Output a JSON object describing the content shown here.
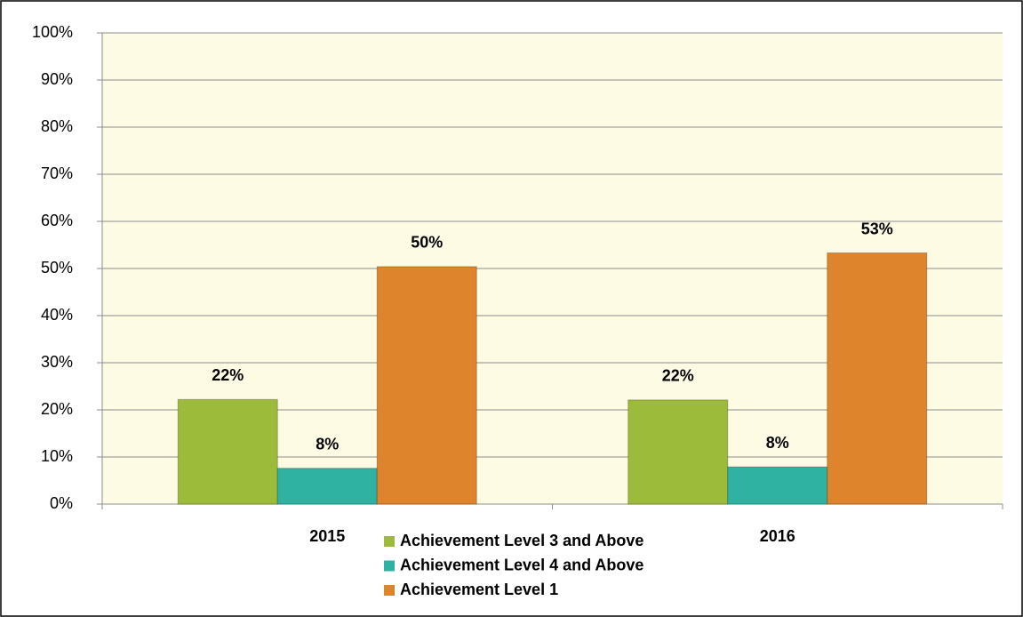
{
  "chart_data": {
    "type": "bar",
    "categories": [
      "2015",
      "2016"
    ],
    "series": [
      {
        "name": "Achievement Level 3 and Above",
        "color": "#9dbb3a",
        "values": [
          22.2,
          22.1
        ],
        "value_labels": [
          "22%",
          "22%"
        ]
      },
      {
        "name": "Achievement Level 4 and Above",
        "color": "#2fb2a2",
        "values": [
          7.6,
          7.9
        ],
        "value_labels": [
          "8%",
          "8%"
        ]
      },
      {
        "name": "Achievement Level 1",
        "color": "#de842c",
        "values": [
          50.4,
          53.3
        ],
        "value_labels": [
          "50%",
          "53%"
        ]
      }
    ],
    "ylim": [
      0,
      100
    ],
    "yticks": [
      {
        "value": 0,
        "label": "0%"
      },
      {
        "value": 10,
        "label": "10%"
      },
      {
        "value": 20,
        "label": "20%"
      },
      {
        "value": 30,
        "label": "30%"
      },
      {
        "value": 40,
        "label": "40%"
      },
      {
        "value": 50,
        "label": "50%"
      },
      {
        "value": 60,
        "label": "60%"
      },
      {
        "value": 70,
        "label": "70%"
      },
      {
        "value": 80,
        "label": "80%"
      },
      {
        "value": 90,
        "label": "90%"
      },
      {
        "value": 100,
        "label": "100%"
      }
    ],
    "grid": true,
    "legend": "bottom"
  }
}
